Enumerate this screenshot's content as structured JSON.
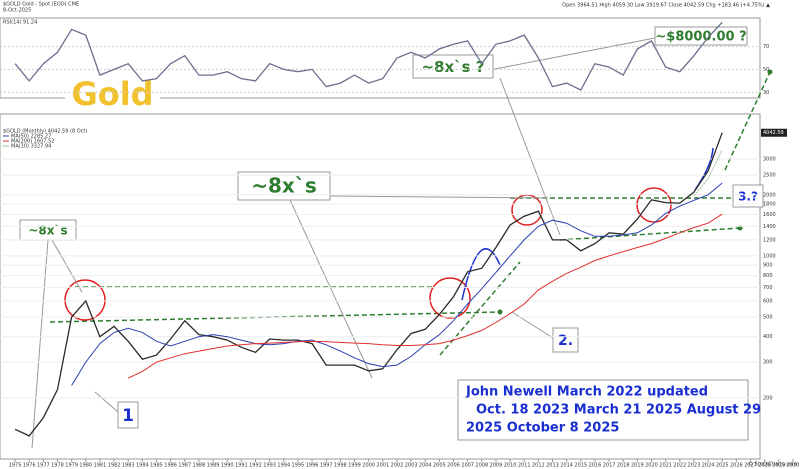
{
  "header": {
    "symbol": "$GOLD Gold - Spot (EOD) CME",
    "date": "8-Oct-2025",
    "quote": "Open 3964.51 High 4059.30 Low 3919.67 Close 4042.59 Chg +183.46 (+4.75%) ▲",
    "credit": "© StockCharts.com"
  },
  "chart_data": [
    {
      "type": "line",
      "title": "RSI(14) 91.24",
      "x": [
        1975,
        1976,
        1977,
        1978,
        1979,
        1980,
        1981,
        1982,
        1983,
        1984,
        1985,
        1986,
        1987,
        1988,
        1989,
        1990,
        1991,
        1992,
        1993,
        1994,
        1995,
        1996,
        1997,
        1998,
        1999,
        2000,
        2001,
        2002,
        2003,
        2004,
        2005,
        2006,
        2007,
        2008,
        2009,
        2010,
        2011,
        2012,
        2013,
        2014,
        2015,
        2016,
        2017,
        2018,
        2019,
        2020,
        2021,
        2022,
        2023,
        2024,
        2025
      ],
      "series": [
        {
          "color": "#6b6f8e",
          "values": [
            55,
            40,
            55,
            65,
            85,
            80,
            45,
            50,
            55,
            40,
            42,
            55,
            62,
            45,
            45,
            48,
            42,
            40,
            55,
            50,
            48,
            50,
            35,
            38,
            45,
            38,
            42,
            60,
            65,
            60,
            68,
            72,
            75,
            55,
            72,
            75,
            80,
            60,
            35,
            38,
            32,
            55,
            52,
            45,
            68,
            75,
            52,
            48,
            62,
            78,
            91.24
          ]
        }
      ],
      "xlim": [
        1974.5,
        2030.5
      ],
      "ylim": [
        25,
        95
      ],
      "yticks": [
        30,
        50,
        70
      ],
      "grid": true
    },
    {
      "type": "line",
      "title": "$GOLD (Monthly) 4042.59 (8 Oct)",
      "log_scale": true,
      "x": [
        1975,
        1976,
        1977,
        1978,
        1979,
        1980,
        1981,
        1982,
        1983,
        1984,
        1985,
        1986,
        1987,
        1988,
        1989,
        1990,
        1991,
        1992,
        1993,
        1994,
        1995,
        1996,
        1997,
        1998,
        1999,
        2000,
        2001,
        2002,
        2003,
        2004,
        2005,
        2006,
        2007,
        2008,
        2009,
        2010,
        2011,
        2012,
        2013,
        2014,
        2015,
        2016,
        2017,
        2018,
        2019,
        2020,
        2021,
        2022,
        2023,
        2024,
        2025
      ],
      "series": [
        {
          "color": "#2a2a2a",
          "values": [
            140,
            130,
            160,
            220,
            500,
            600,
            400,
            450,
            380,
            310,
            325,
            390,
            480,
            410,
            400,
            385,
            355,
            335,
            390,
            385,
            385,
            370,
            290,
            290,
            290,
            272,
            278,
            345,
            415,
            435,
            515,
            630,
            835,
            870,
            1100,
            1420,
            1570,
            1660,
            1200,
            1200,
            1060,
            1150,
            1300,
            1280,
            1520,
            1890,
            1830,
            1820,
            2060,
            2620,
            4042.59
          ]
        },
        {
          "name": "MA(50) 2285.27",
          "color": "#2b3fb0",
          "values": [
            null,
            null,
            null,
            null,
            230,
            300,
            370,
            420,
            440,
            420,
            380,
            360,
            380,
            400,
            410,
            400,
            385,
            370,
            365,
            370,
            380,
            385,
            365,
            340,
            315,
            295,
            285,
            290,
            320,
            365,
            410,
            480,
            580,
            690,
            830,
            1000,
            1200,
            1400,
            1500,
            1450,
            1330,
            1250,
            1250,
            1270,
            1300,
            1420,
            1620,
            1760,
            1880,
            2000,
            2285.27
          ]
        },
        {
          "name": "MA(200) 1607.52",
          "color": "#e03030",
          "values": [
            null,
            null,
            null,
            null,
            null,
            null,
            null,
            null,
            250,
            270,
            300,
            315,
            330,
            340,
            350,
            360,
            365,
            370,
            372,
            375,
            378,
            380,
            378,
            375,
            372,
            370,
            365,
            362,
            362,
            365,
            370,
            385,
            405,
            430,
            470,
            520,
            580,
            680,
            750,
            820,
            880,
            950,
            1000,
            1050,
            1100,
            1150,
            1220,
            1300,
            1380,
            1450,
            1607.52
          ]
        },
        {
          "name": "MA(10) 3327.94",
          "color": "#8fc28f",
          "values": [
            null,
            null,
            null,
            null,
            null,
            null,
            null,
            null,
            null,
            null,
            null,
            null,
            null,
            null,
            null,
            null,
            null,
            null,
            null,
            null,
            null,
            null,
            null,
            null,
            null,
            null,
            null,
            null,
            null,
            null,
            null,
            null,
            null,
            null,
            null,
            null,
            null,
            null,
            null,
            null,
            null,
            null,
            null,
            null,
            null,
            null,
            null,
            null,
            1980,
            2400,
            3327.94
          ]
        }
      ],
      "xlim": [
        1974.5,
        2030.5
      ],
      "xticks": [
        1975,
        1976,
        1977,
        1978,
        1979,
        1980,
        1981,
        1982,
        1983,
        1984,
        1985,
        1986,
        1987,
        1988,
        1989,
        1990,
        1991,
        1992,
        1993,
        1994,
        1995,
        1996,
        1997,
        1998,
        1999,
        2000,
        2001,
        2002,
        2003,
        2004,
        2005,
        2006,
        2007,
        2008,
        2009,
        2010,
        2011,
        2012,
        2013,
        2014,
        2015,
        2016,
        2017,
        2018,
        2019,
        2020,
        2021,
        2022,
        2023,
        2024,
        2025,
        2026,
        2027,
        2028,
        2029,
        2030
      ],
      "ylim": [
        100,
        5000
      ],
      "yticks": [
        200,
        300,
        400,
        500,
        600,
        700,
        800,
        900,
        1000,
        1200,
        1400,
        1600,
        1800,
        2000,
        2500,
        3000
      ],
      "grid": true,
      "annotations": [
        "Gold",
        "~$8000.00 ?",
        "~8x`s ?",
        "~8x`s",
        "~8x`s",
        "1",
        "2.",
        "3.?",
        "John Newell March 2022 updated",
        "Oct. 18 2023 March 21 2025 August 29",
        "2025 October 8 2025"
      ]
    }
  ]
}
